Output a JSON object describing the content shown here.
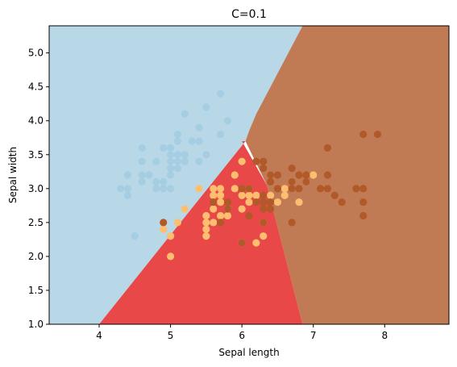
{
  "chart_data": {
    "type": "scatter",
    "title": "C=0.1",
    "xlabel": "Sepal length",
    "ylabel": "Sepal width",
    "xlim": [
      3.3,
      8.9
    ],
    "ylim": [
      1.0,
      5.4
    ],
    "xticks": [
      4,
      5,
      6,
      7,
      8
    ],
    "yticks": [
      1.0,
      1.5,
      2.0,
      2.5,
      3.0,
      3.5,
      4.0,
      4.5,
      5.0
    ],
    "grid": false,
    "legend": "none",
    "regions": [
      {
        "class": 0,
        "color": "#b8d8e8",
        "polygon": [
          [
            3.3,
            1.0
          ],
          [
            4.0,
            1.0
          ],
          [
            6.05,
            3.7
          ],
          [
            6.1,
            3.85
          ],
          [
            6.2,
            4.1
          ],
          [
            6.8,
            5.3
          ],
          [
            6.85,
            5.4
          ],
          [
            3.3,
            5.4
          ]
        ]
      },
      {
        "class": 1,
        "color": "#e84848",
        "polygon": [
          [
            4.0,
            1.0
          ],
          [
            6.85,
            1.0
          ],
          [
            6.35,
            3.05
          ],
          [
            6.0,
            3.7
          ],
          [
            6.05,
            3.7
          ],
          [
            4.0,
            1.0
          ]
        ]
      },
      {
        "class": 2,
        "color": "#c07b55",
        "polygon": [
          [
            6.85,
            1.0
          ],
          [
            8.9,
            1.0
          ],
          [
            8.9,
            5.4
          ],
          [
            6.85,
            5.4
          ],
          [
            6.8,
            5.3
          ],
          [
            6.2,
            4.1
          ],
          [
            6.1,
            3.85
          ],
          [
            6.05,
            3.7
          ],
          [
            6.35,
            3.05
          ]
        ]
      }
    ],
    "series": [
      {
        "class": 0,
        "color": "#a6cee3",
        "points": [
          [
            4.3,
            3.0
          ],
          [
            4.4,
            2.9
          ],
          [
            4.4,
            3.0
          ],
          [
            4.4,
            3.2
          ],
          [
            4.5,
            2.3
          ],
          [
            4.6,
            3.1
          ],
          [
            4.6,
            3.2
          ],
          [
            4.6,
            3.4
          ],
          [
            4.6,
            3.6
          ],
          [
            4.7,
            3.2
          ],
          [
            4.8,
            3.0
          ],
          [
            4.8,
            3.1
          ],
          [
            4.8,
            3.4
          ],
          [
            4.9,
            3.0
          ],
          [
            4.9,
            3.1
          ],
          [
            4.9,
            3.6
          ],
          [
            5.0,
            3.0
          ],
          [
            5.0,
            3.2
          ],
          [
            5.0,
            3.3
          ],
          [
            5.0,
            3.4
          ],
          [
            5.0,
            3.5
          ],
          [
            5.0,
            3.6
          ],
          [
            5.1,
            3.3
          ],
          [
            5.1,
            3.4
          ],
          [
            5.1,
            3.5
          ],
          [
            5.1,
            3.7
          ],
          [
            5.1,
            3.8
          ],
          [
            5.2,
            3.4
          ],
          [
            5.2,
            3.5
          ],
          [
            5.2,
            4.1
          ],
          [
            5.3,
            3.7
          ],
          [
            5.4,
            3.4
          ],
          [
            5.4,
            3.7
          ],
          [
            5.4,
            3.9
          ],
          [
            5.5,
            3.5
          ],
          [
            5.5,
            4.2
          ],
          [
            5.7,
            3.8
          ],
          [
            5.7,
            4.4
          ],
          [
            5.8,
            4.0
          ],
          [
            4.9,
            2.4
          ],
          [
            5.0,
            2.3
          ]
        ]
      },
      {
        "class": 1,
        "color": "#fdbf6f",
        "points": [
          [
            4.9,
            2.4
          ],
          [
            5.0,
            2.0
          ],
          [
            5.0,
            2.3
          ],
          [
            5.1,
            2.5
          ],
          [
            5.2,
            2.7
          ],
          [
            5.4,
            3.0
          ],
          [
            5.5,
            2.3
          ],
          [
            5.5,
            2.4
          ],
          [
            5.5,
            2.5
          ],
          [
            5.5,
            2.6
          ],
          [
            5.6,
            2.5
          ],
          [
            5.6,
            2.7
          ],
          [
            5.6,
            2.9
          ],
          [
            5.6,
            3.0
          ],
          [
            5.7,
            2.6
          ],
          [
            5.7,
            2.8
          ],
          [
            5.7,
            2.9
          ],
          [
            5.7,
            3.0
          ],
          [
            5.8,
            2.6
          ],
          [
            5.8,
            2.7
          ],
          [
            5.9,
            3.0
          ],
          [
            5.9,
            3.2
          ],
          [
            6.0,
            2.2
          ],
          [
            6.0,
            2.7
          ],
          [
            6.0,
            2.9
          ],
          [
            6.0,
            3.4
          ],
          [
            6.1,
            2.8
          ],
          [
            6.1,
            2.9
          ],
          [
            6.1,
            3.0
          ],
          [
            6.2,
            2.2
          ],
          [
            6.2,
            2.9
          ],
          [
            6.3,
            2.3
          ],
          [
            6.3,
            2.5
          ],
          [
            6.4,
            2.9
          ],
          [
            6.4,
            3.2
          ],
          [
            6.5,
            2.8
          ],
          [
            6.6,
            2.9
          ],
          [
            6.6,
            3.0
          ],
          [
            6.7,
            3.0
          ],
          [
            6.7,
            3.1
          ],
          [
            6.8,
            2.8
          ],
          [
            6.9,
            3.1
          ],
          [
            7.0,
            3.2
          ]
        ]
      },
      {
        "class": 2,
        "color": "#b15928",
        "points": [
          [
            4.9,
            2.5
          ],
          [
            5.6,
            2.8
          ],
          [
            5.7,
            2.5
          ],
          [
            5.8,
            2.7
          ],
          [
            5.8,
            2.8
          ],
          [
            6.0,
            2.2
          ],
          [
            6.0,
            3.0
          ],
          [
            6.1,
            2.6
          ],
          [
            6.1,
            3.0
          ],
          [
            6.2,
            2.8
          ],
          [
            6.2,
            3.4
          ],
          [
            6.3,
            2.5
          ],
          [
            6.3,
            2.7
          ],
          [
            6.3,
            2.8
          ],
          [
            6.3,
            2.9
          ],
          [
            6.3,
            3.3
          ],
          [
            6.3,
            3.4
          ],
          [
            6.4,
            2.7
          ],
          [
            6.4,
            2.8
          ],
          [
            6.4,
            3.1
          ],
          [
            6.4,
            3.2
          ],
          [
            6.5,
            3.0
          ],
          [
            6.5,
            3.2
          ],
          [
            6.7,
            2.5
          ],
          [
            6.7,
            3.0
          ],
          [
            6.7,
            3.1
          ],
          [
            6.7,
            3.3
          ],
          [
            6.8,
            3.0
          ],
          [
            6.8,
            3.2
          ],
          [
            6.9,
            3.1
          ],
          [
            6.9,
            3.2
          ],
          [
            7.1,
            3.0
          ],
          [
            7.2,
            3.0
          ],
          [
            7.2,
            3.2
          ],
          [
            7.2,
            3.6
          ],
          [
            7.3,
            2.9
          ],
          [
            7.4,
            2.8
          ],
          [
            7.6,
            3.0
          ],
          [
            7.7,
            2.6
          ],
          [
            7.7,
            2.8
          ],
          [
            7.7,
            3.0
          ],
          [
            7.7,
            3.8
          ],
          [
            7.9,
            3.8
          ]
        ]
      }
    ]
  }
}
